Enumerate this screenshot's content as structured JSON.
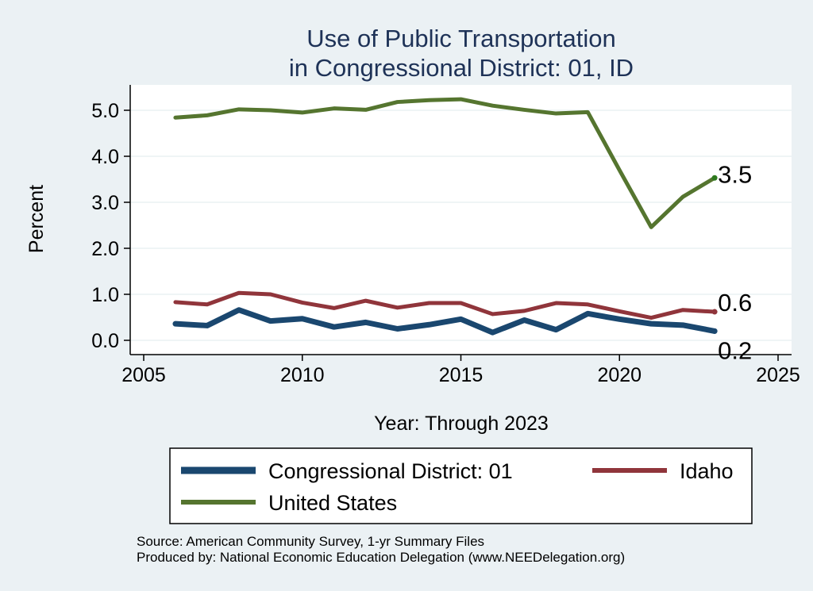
{
  "chart_data": {
    "type": "line",
    "title": [
      "Use of Public Transportation",
      "in Congressional District: 01, ID"
    ],
    "xlabel": "Year: Through 2023",
    "ylabel": "Percent",
    "xlim": [
      2005,
      2025
    ],
    "ylim": [
      0,
      5.4
    ],
    "xticks": [
      2005,
      2010,
      2015,
      2020,
      2025
    ],
    "yticks": [
      0,
      1,
      2,
      3,
      4,
      5
    ],
    "ytick_labels": [
      "0.0",
      "1.0",
      "2.0",
      "3.0",
      "4.0",
      "5.0"
    ],
    "grid": true,
    "legend_position": "bottom",
    "x": [
      2006,
      2007,
      2008,
      2009,
      2010,
      2011,
      2012,
      2013,
      2014,
      2015,
      2016,
      2017,
      2018,
      2019,
      2020,
      2021,
      2022,
      2023
    ],
    "series": [
      {
        "name": "Congressional District: 01",
        "color": "#1a476f",
        "values": [
          0.36,
          0.32,
          0.66,
          0.42,
          0.47,
          0.29,
          0.39,
          0.25,
          0.34,
          0.46,
          0.17,
          0.44,
          0.23,
          0.58,
          0.46,
          0.36,
          0.33,
          0.2
        ],
        "end_label": "0.2"
      },
      {
        "name": "Idaho",
        "color": "#90353b",
        "values": [
          0.83,
          0.78,
          1.03,
          1.0,
          0.82,
          0.7,
          0.86,
          0.71,
          0.81,
          0.81,
          0.57,
          0.64,
          0.81,
          0.78,
          0.63,
          0.49,
          0.66,
          0.62
        ],
        "end_label": "0.6"
      },
      {
        "name": "United States",
        "color": "#55752f",
        "values": [
          4.84,
          4.89,
          5.02,
          5.0,
          4.95,
          5.04,
          5.01,
          5.18,
          5.22,
          5.24,
          5.1,
          5.01,
          4.93,
          4.96,
          3.7,
          2.46,
          3.12,
          3.53
        ],
        "end_label": "3.5"
      }
    ]
  },
  "source_lines": [
    "Source: American Community Survey, 1-yr Summary Files",
    "Produced by: National Economic Education Delegation (www.NEEDelegation.org)"
  ]
}
